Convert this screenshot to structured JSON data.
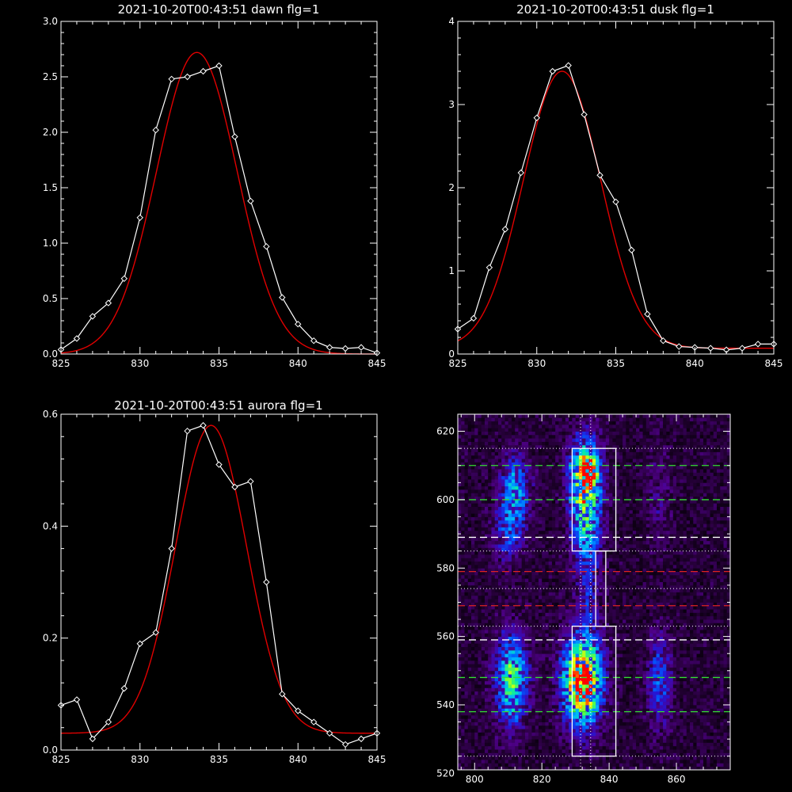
{
  "chart_data": [
    {
      "id": "dawn",
      "type": "line",
      "title": "2021-10-20T00:43:51 dawn flg=1",
      "xlim": [
        825,
        845
      ],
      "ylim": [
        0,
        3.0
      ],
      "x_ticks": [
        "825",
        "830",
        "835",
        "840",
        "845"
      ],
      "y_ticks": [
        "0.0",
        "0.5",
        "1.0",
        "1.5",
        "2.0",
        "2.5",
        "3.0"
      ],
      "series": [
        {
          "style": "white-diamond",
          "x": [
            825,
            826,
            827,
            828,
            829,
            830,
            831,
            832,
            833,
            834,
            835,
            836,
            837,
            838,
            839,
            840,
            841,
            842,
            843,
            844,
            845
          ],
          "y": [
            0.04,
            0.14,
            0.34,
            0.46,
            0.68,
            1.23,
            2.02,
            2.48,
            2.5,
            2.55,
            2.6,
            1.96,
            1.38,
            0.97,
            0.51,
            0.27,
            0.12,
            0.06,
            0.05,
            0.06,
            0.01
          ]
        },
        {
          "style": "red-fit",
          "gaussian": {
            "amp": 2.72,
            "center": 833.6,
            "sigma": 2.55,
            "offset": 0.0
          }
        }
      ]
    },
    {
      "id": "dusk",
      "type": "line",
      "title": "2021-10-20T00:43:51 dusk flg=1",
      "xlim": [
        825,
        845
      ],
      "ylim": [
        0,
        4
      ],
      "x_ticks": [
        "825",
        "830",
        "835",
        "840",
        "845"
      ],
      "y_ticks": [
        "0",
        "1",
        "2",
        "3",
        "4"
      ],
      "series": [
        {
          "style": "white-diamond",
          "x": [
            825,
            826,
            827,
            828,
            829,
            830,
            831,
            832,
            833,
            834,
            835,
            836,
            837,
            838,
            839,
            840,
            841,
            842,
            843,
            844,
            845
          ],
          "y": [
            0.3,
            0.43,
            1.04,
            1.5,
            2.18,
            2.84,
            3.4,
            3.47,
            2.88,
            2.15,
            1.83,
            1.25,
            0.48,
            0.16,
            0.09,
            0.08,
            0.07,
            0.05,
            0.07,
            0.12,
            0.12
          ]
        },
        {
          "style": "red-fit",
          "gaussian": {
            "amp": 3.33,
            "center": 831.6,
            "sigma": 2.45,
            "offset": 0.07
          }
        }
      ]
    },
    {
      "id": "aurora",
      "type": "line",
      "title": "2021-10-20T00:43:51 aurora flg=1",
      "xlim": [
        825,
        845
      ],
      "ylim": [
        0,
        0.6
      ],
      "x_ticks": [
        "825",
        "830",
        "835",
        "840",
        "845"
      ],
      "y_ticks": [
        "0.0",
        "0.2",
        "0.4",
        "0.6"
      ],
      "series": [
        {
          "style": "white-diamond",
          "x": [
            825,
            826,
            827,
            828,
            829,
            830,
            831,
            832,
            833,
            834,
            835,
            836,
            837,
            838,
            839,
            840,
            841,
            842,
            843,
            844,
            845
          ],
          "y": [
            0.08,
            0.09,
            0.02,
            0.05,
            0.11,
            0.19,
            0.21,
            0.36,
            0.57,
            0.58,
            0.51,
            0.47,
            0.48,
            0.3,
            0.1,
            0.07,
            0.05,
            0.03,
            0.01,
            0.02,
            0.03
          ]
        },
        {
          "style": "red-fit",
          "gaussian": {
            "amp": 0.55,
            "center": 834.5,
            "sigma": 2.25,
            "offset": 0.03
          }
        }
      ]
    },
    {
      "id": "image",
      "type": "heatmap",
      "xlim": [
        795,
        876
      ],
      "ylim": [
        521,
        625
      ],
      "x_ticks": [
        "800",
        "820",
        "840",
        "860"
      ],
      "y_ticks": [
        "520",
        "540",
        "560",
        "580",
        "600",
        "620"
      ],
      "blobs": [
        {
          "x": 812,
          "y": 603,
          "sx": 3,
          "sy": 7,
          "amp": 0.42
        },
        {
          "x": 810,
          "y": 590,
          "sx": 3,
          "sy": 6,
          "amp": 0.25
        },
        {
          "x": 833,
          "y": 606,
          "sx": 3.2,
          "sy": 8,
          "amp": 0.85
        },
        {
          "x": 834,
          "y": 609,
          "sx": 1.5,
          "sy": 2.5,
          "amp": 0.35
        },
        {
          "x": 833,
          "y": 590,
          "sx": 3,
          "sy": 7,
          "amp": 0.35
        },
        {
          "x": 811,
          "y": 547,
          "sx": 3.3,
          "sy": 9,
          "amp": 0.6
        },
        {
          "x": 832,
          "y": 547,
          "sx": 4,
          "sy": 9,
          "amp": 0.95
        },
        {
          "x": 832,
          "y": 546,
          "sx": 1.6,
          "sy": 2.5,
          "amp": 0.4
        },
        {
          "x": 855,
          "y": 547,
          "sx": 2.5,
          "sy": 9,
          "amp": 0.3
        },
        {
          "x": 855,
          "y": 600,
          "sx": 2.5,
          "sy": 10,
          "amp": 0.12
        },
        {
          "x": 834,
          "y": 573,
          "sx": 2.5,
          "sy": 9,
          "amp": 0.18
        }
      ],
      "boxes": [
        {
          "x0": 829,
          "x1": 842,
          "y0": 585,
          "y1": 615
        },
        {
          "x0": 829,
          "x1": 842,
          "y0": 525,
          "y1": 563
        },
        {
          "x0": 836,
          "x1": 839,
          "y0": 563,
          "y1": 585
        }
      ],
      "vlines": [
        {
          "x": 831.5,
          "color": "#ffffff",
          "dash": "dotted"
        },
        {
          "x": 834.5,
          "color": "#ffffff",
          "dash": "dotted"
        }
      ],
      "hlines": [
        {
          "y": 615,
          "color": "#ffffff",
          "dash": "dotted"
        },
        {
          "y": 610,
          "color": "#33dd33",
          "dash": "dashed"
        },
        {
          "y": 600,
          "color": "#33dd33",
          "dash": "dashed"
        },
        {
          "y": 589,
          "color": "#ffffff",
          "dash": "dashed"
        },
        {
          "y": 585,
          "color": "#ffffff",
          "dash": "dotted"
        },
        {
          "y": 579,
          "color": "#dd2222",
          "dash": "dashed"
        },
        {
          "y": 574,
          "color": "#ffffff",
          "dash": "dotted"
        },
        {
          "y": 569,
          "color": "#dd2222",
          "dash": "dashed"
        },
        {
          "y": 563,
          "color": "#ffffff",
          "dash": "dotted"
        },
        {
          "y": 559,
          "color": "#ffffff",
          "dash": "dashed"
        },
        {
          "y": 548,
          "color": "#33dd33",
          "dash": "dashed"
        },
        {
          "y": 538,
          "color": "#33dd33",
          "dash": "dashed"
        },
        {
          "y": 525,
          "color": "#ffffff",
          "dash": "dotted"
        }
      ]
    }
  ]
}
